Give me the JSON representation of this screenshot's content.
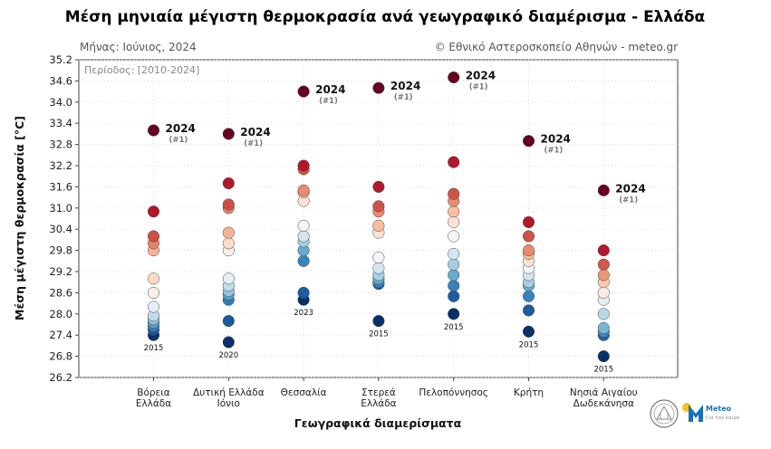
{
  "chart_data": {
    "type": "scatter",
    "title": "Μέση μηνιαία μέγιστη θερμοκρασία ανά γεωγραφικό διαμέρισμα - Ελλάδα",
    "month_label": "Μήνας: Ιούνιος, 2024",
    "credit": "© Εθνικό Αστεροσκοπείο Αθηνών - meteo.gr",
    "period": "Περίοδος: [2010-2024]",
    "xlabel": "Γεωγραφικά διαμερίσματα",
    "ylabel": "Μέση μέγιστη θερμοκρασία [°C]",
    "ylim": [
      26.2,
      35.2
    ],
    "yticks": [
      "26.2",
      "26.8",
      "27.4",
      "28.0",
      "28.6",
      "29.2",
      "29.8",
      "30.4",
      "31.0",
      "31.6",
      "32.2",
      "32.8",
      "33.4",
      "34.0",
      "34.6",
      "35.2"
    ],
    "color_scale": [
      "#08306b",
      "#2166ac",
      "#4393c3",
      "#92c5de",
      "#d1e5f0",
      "#f7f7f7",
      "#fddbc7",
      "#f4a582",
      "#d6604d",
      "#b2182b",
      "#67001f"
    ],
    "categories": [
      {
        "label": [
          "Βόρεια",
          "Ελλάδα"
        ],
        "values": [
          33.2,
          30.9,
          30.2,
          30.0,
          29.8,
          29.0,
          28.6,
          28.2,
          27.95,
          27.85,
          27.75,
          27.65,
          27.55,
          27.4
        ],
        "record": {
          "year": "2024",
          "rank": "(#1)",
          "value": 33.2
        },
        "min_label": "2015"
      },
      {
        "label": [
          "Δυτική Ελλάδα",
          "Ιόνιο"
        ],
        "values": [
          33.1,
          31.7,
          31.1,
          31.0,
          30.3,
          30.0,
          29.8,
          29.0,
          28.8,
          28.65,
          28.55,
          28.4,
          27.8,
          27.2
        ],
        "record": {
          "year": "2024",
          "rank": "(#1)",
          "value": 33.1
        },
        "min_label": "2020"
      },
      {
        "label": [
          "Θεσσαλία"
        ],
        "values": [
          34.3,
          32.2,
          32.1,
          31.5,
          31.45,
          31.2,
          30.5,
          30.2,
          30.05,
          29.8,
          29.5,
          28.6,
          28.4
        ],
        "record": {
          "year": "2024",
          "rank": "(#1)",
          "value": 34.3
        },
        "min_label": "2023"
      },
      {
        "label": [
          "Στερεά",
          "Ελλάδα"
        ],
        "values": [
          34.4,
          31.6,
          31.05,
          30.9,
          30.5,
          30.3,
          29.6,
          29.3,
          29.1,
          29.0,
          28.9,
          28.85,
          27.8
        ],
        "record": {
          "year": "2024",
          "rank": "(#1)",
          "value": 34.4
        },
        "min_label": "2015"
      },
      {
        "label": [
          "Πελοπόννησος"
        ],
        "values": [
          34.7,
          32.3,
          31.4,
          31.2,
          30.9,
          30.6,
          30.2,
          29.7,
          29.4,
          29.1,
          28.8,
          28.5,
          28.0
        ],
        "record": {
          "year": "2024",
          "rank": "(#1)",
          "value": 34.7
        },
        "min_label": "2015"
      },
      {
        "label": [
          "Κρήτη"
        ],
        "values": [
          32.9,
          30.6,
          30.2,
          29.8,
          29.7,
          29.5,
          29.3,
          29.1,
          28.9,
          28.8,
          28.5,
          28.1,
          27.5
        ],
        "record": {
          "year": "2024",
          "rank": "(#1)",
          "value": 32.9
        },
        "min_label": "2015"
      },
      {
        "label": [
          "Νησιά Αιγαίου",
          "Δωδεκάνησα"
        ],
        "values": [
          31.5,
          29.8,
          29.4,
          29.1,
          28.9,
          28.6,
          28.4,
          28.0,
          27.6,
          27.5,
          27.4,
          26.8
        ],
        "record": {
          "year": "2024",
          "rank": "(#1)",
          "value": 31.5
        },
        "min_label": "2015"
      }
    ],
    "grid": true,
    "legend": "none"
  },
  "logos": {
    "meteo_label": "Meteo",
    "meteo_tagline": "Για τον καιρό",
    "seal_icon": "noa-seal-icon"
  }
}
